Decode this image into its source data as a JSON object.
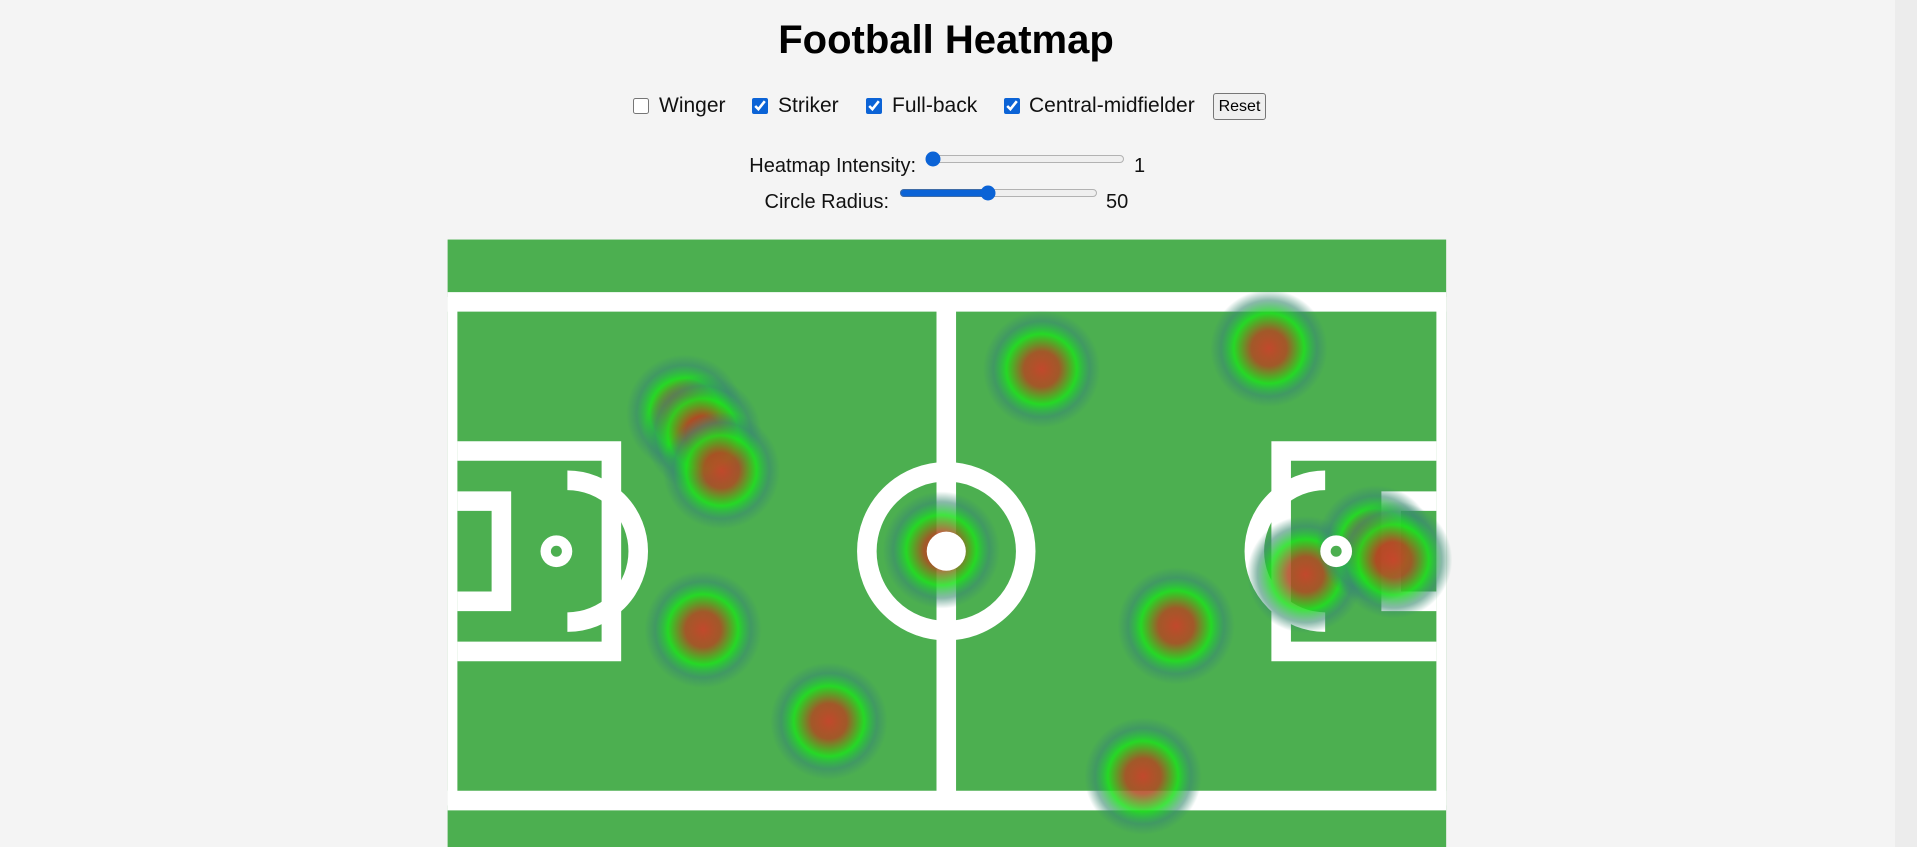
{
  "header": {
    "title": "Football Heatmap"
  },
  "filters": [
    {
      "label": "Winger",
      "checked": false
    },
    {
      "label": "Striker",
      "checked": true
    },
    {
      "label": "Full-back",
      "checked": true
    },
    {
      "label": "Central-midfielder",
      "checked": true
    }
  ],
  "reset": "Reset",
  "sliders": [
    {
      "label": "Heatmap Intensity:",
      "value": 1
    },
    {
      "label": "Circle Radius:",
      "value": 50
    }
  ]
}
